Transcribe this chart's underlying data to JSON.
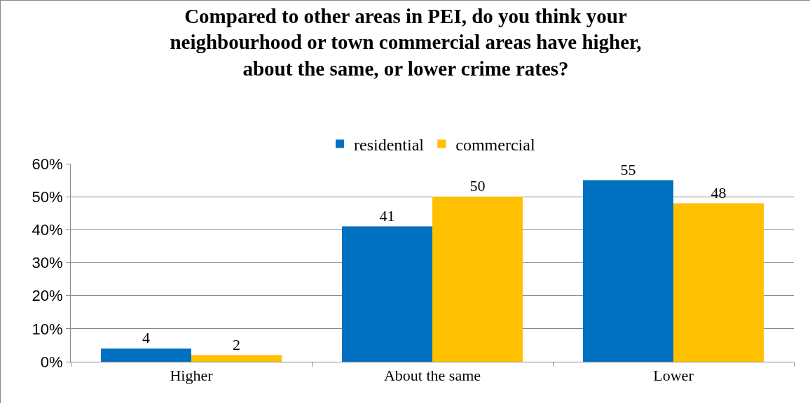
{
  "chart_data": {
    "type": "bar",
    "title": "Compared to other areas in PEI, do you think your neighbourhood or town commercial areas have higher, about the same, or lower crime rates?",
    "categories": [
      "Higher",
      "About the same",
      "Lower"
    ],
    "series": [
      {
        "name": "residential",
        "color": "#0070c0",
        "values": [
          4,
          41,
          55
        ]
      },
      {
        "name": "commercial",
        "color": "#ffc000",
        "values": [
          2,
          50,
          48
        ]
      }
    ],
    "ylim": [
      0,
      60
    ],
    "yticks": [
      {
        "value": 0,
        "label": "0%"
      },
      {
        "value": 10,
        "label": "10%"
      },
      {
        "value": 20,
        "label": "20%"
      },
      {
        "value": 30,
        "label": "30%"
      },
      {
        "value": 40,
        "label": "40%"
      },
      {
        "value": 50,
        "label": "50%"
      },
      {
        "value": 60,
        "label": "60%"
      }
    ],
    "grid": "y",
    "legend": "top",
    "data_labels": true
  }
}
